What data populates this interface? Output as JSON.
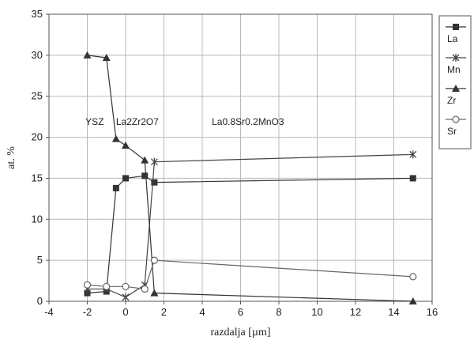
{
  "chart_data": {
    "type": "line",
    "xlabel": "razdalja [µm]",
    "ylabel": "at. %",
    "xlim": [
      -4,
      16
    ],
    "ylim": [
      0,
      35
    ],
    "xticks": [
      -4,
      -2,
      0,
      2,
      4,
      6,
      8,
      10,
      12,
      14,
      16
    ],
    "yticks": [
      0,
      5,
      10,
      15,
      20,
      25,
      30,
      35
    ],
    "grid": true,
    "legend_position": "right",
    "annotations": [
      {
        "text": "YSZ",
        "x": -2.1,
        "y": 21.5
      },
      {
        "text": "La2Zr2O7",
        "x": -0.5,
        "y": 21.5
      },
      {
        "text": "La0.8Sr0.2MnO3",
        "x": 4.5,
        "y": 21.5
      }
    ],
    "series": [
      {
        "name": "La",
        "marker": "square",
        "color": "#333333",
        "points": [
          [
            -2,
            1.0
          ],
          [
            -1,
            1.2
          ],
          [
            -0.5,
            13.8
          ],
          [
            0,
            15.0
          ],
          [
            1,
            15.3
          ],
          [
            1.5,
            14.5
          ],
          [
            15,
            15.0
          ]
        ]
      },
      {
        "name": "Mn",
        "marker": "star",
        "color": "#444444",
        "points": [
          [
            -2,
            1.5
          ],
          [
            -1,
            1.5
          ],
          [
            0,
            0.5
          ],
          [
            1,
            2.0
          ],
          [
            1.5,
            17.0
          ],
          [
            15,
            17.9
          ]
        ]
      },
      {
        "name": "Zr",
        "marker": "triangle",
        "color": "#333333",
        "points": [
          [
            -2,
            30.0
          ],
          [
            -1,
            29.7
          ],
          [
            -0.5,
            19.8
          ],
          [
            0,
            19.0
          ],
          [
            1,
            17.2
          ],
          [
            1.5,
            1.0
          ],
          [
            15,
            0.0
          ]
        ]
      },
      {
        "name": "Sr",
        "marker": "circle",
        "color": "#666666",
        "points": [
          [
            -2,
            2.0
          ],
          [
            -1,
            1.8
          ],
          [
            0,
            1.8
          ],
          [
            1,
            1.5
          ],
          [
            1.5,
            5.0
          ],
          [
            15,
            3.0
          ]
        ]
      }
    ]
  }
}
